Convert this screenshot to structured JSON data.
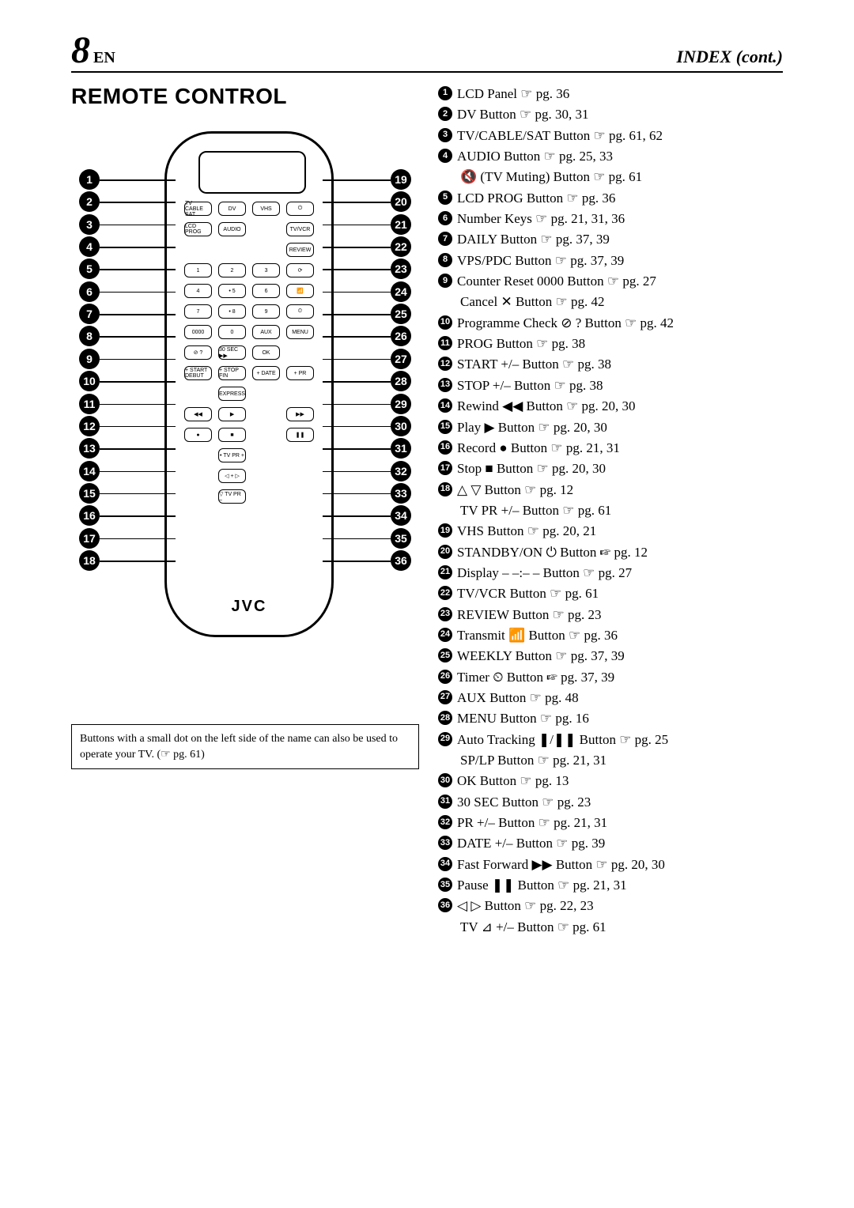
{
  "page_number_big": "8",
  "page_number_lang": "EN",
  "index_cont": "INDEX (cont.)",
  "section_title": "REMOTE CONTROL",
  "logo": "JVC",
  "note": "Buttons with a small dot on the left side of the name can also be used to operate your TV. (☞ pg. 61)",
  "left_callouts": [
    1,
    2,
    3,
    4,
    5,
    6,
    7,
    8,
    9,
    10,
    11,
    12,
    13,
    14,
    15,
    16,
    17,
    18
  ],
  "right_callouts": [
    19,
    20,
    21,
    22,
    23,
    24,
    25,
    26,
    27,
    28,
    29,
    30,
    31,
    32,
    33,
    34,
    35,
    36
  ],
  "remote_rows": [
    [
      "TV CABLE SAT",
      "DV",
      "VHS",
      "⏻"
    ],
    [
      "LCD PROG",
      "AUDIO",
      "",
      "TV/VCR"
    ],
    [
      "",
      "",
      "",
      "REVIEW"
    ],
    [
      "1",
      "2",
      "3",
      "⟳"
    ],
    [
      "4",
      "• 5",
      "6",
      "📶"
    ],
    [
      "7",
      "• 8",
      "9",
      "⏲"
    ],
    [
      "0000",
      "0",
      "AUX",
      "MENU"
    ],
    [
      "⊘ ?",
      "30 SEC ▶▶",
      "OK",
      ""
    ],
    [
      "+ START DEBUT",
      "+ STOP FIN",
      "+ DATE",
      "+ PR"
    ],
    [
      "",
      "EXPRESS",
      "",
      ""
    ],
    [
      "◀◀",
      "▶",
      "",
      "▶▶"
    ],
    [
      "●",
      "■",
      "",
      "❚❚"
    ],
    [
      "",
      "• TV PR +",
      "",
      ""
    ],
    [
      "",
      "◁  +  ▷",
      "",
      ""
    ],
    [
      "",
      "▽ TV PR –",
      "",
      ""
    ]
  ],
  "items": [
    {
      "n": 1,
      "t": "LCD Panel ☞ pg. 36"
    },
    {
      "n": 2,
      "t": "DV Button ☞ pg. 30, 31"
    },
    {
      "n": 3,
      "t": "TV/CABLE/SAT Button ☞ pg. 61, 62"
    },
    {
      "n": 4,
      "t": "AUDIO Button ☞ pg. 25, 33"
    },
    {
      "sub": true,
      "t": "🔇 (TV Muting) Button ☞ pg. 61"
    },
    {
      "n": 5,
      "t": "LCD PROG Button ☞ pg. 36"
    },
    {
      "n": 6,
      "t": "Number Keys ☞ pg. 21, 31, 36"
    },
    {
      "n": 7,
      "t": "DAILY Button ☞ pg. 37, 39"
    },
    {
      "n": 8,
      "t": "VPS/PDC Button ☞ pg. 37, 39"
    },
    {
      "n": 9,
      "t": "Counter Reset 0000 Button ☞ pg. 27"
    },
    {
      "sub": true,
      "t": "Cancel ✕ Button ☞ pg. 42"
    },
    {
      "n": 10,
      "t": "Programme Check ⊘ ? Button ☞ pg. 42"
    },
    {
      "n": 11,
      "t": "PROG Button ☞ pg. 38"
    },
    {
      "n": 12,
      "t": "START +/– Button ☞ pg. 38"
    },
    {
      "n": 13,
      "t": "STOP +/– Button ☞ pg. 38"
    },
    {
      "n": 14,
      "t": "Rewind ◀◀ Button ☞ pg. 20, 30"
    },
    {
      "n": 15,
      "t": "Play ▶ Button ☞ pg. 20, 30"
    },
    {
      "n": 16,
      "t": "Record ● Button ☞ pg. 21, 31"
    },
    {
      "n": 17,
      "t": "Stop ■ Button ☞ pg. 20, 30"
    },
    {
      "n": 18,
      "t": "△ ▽ Button ☞ pg. 12"
    },
    {
      "sub": true,
      "t": "TV PR +/– Button ☞ pg. 61"
    },
    {
      "n": 19,
      "t": "VHS Button ☞ pg. 20, 21"
    },
    {
      "n": 20,
      "t": "STANDBY/ON ⏻ Button ☞ pg. 12"
    },
    {
      "n": 21,
      "t": "Display – –:– – Button ☞ pg. 27"
    },
    {
      "n": 22,
      "t": "TV/VCR Button ☞ pg. 61"
    },
    {
      "n": 23,
      "t": "REVIEW Button ☞ pg. 23"
    },
    {
      "n": 24,
      "t": "Transmit 📶 Button ☞ pg. 36"
    },
    {
      "n": 25,
      "t": "WEEKLY Button ☞ pg. 37, 39"
    },
    {
      "n": 26,
      "t": "Timer ⏲ Button ☞ pg. 37, 39"
    },
    {
      "n": 27,
      "t": "AUX Button ☞ pg. 48"
    },
    {
      "n": 28,
      "t": "MENU Button ☞ pg. 16"
    },
    {
      "n": 29,
      "t": "Auto Tracking ❚/❚❚ Button ☞ pg. 25"
    },
    {
      "sub": true,
      "t": "SP/LP Button ☞ pg. 21, 31"
    },
    {
      "n": 30,
      "t": "OK Button ☞ pg. 13"
    },
    {
      "n": 31,
      "t": "30 SEC Button ☞ pg. 23"
    },
    {
      "n": 32,
      "t": "PR +/– Button ☞ pg. 21, 31"
    },
    {
      "n": 33,
      "t": "DATE +/– Button ☞ pg. 39"
    },
    {
      "n": 34,
      "t": "Fast Forward ▶▶ Button ☞ pg. 20, 30"
    },
    {
      "n": 35,
      "t": "Pause ❚❚ Button ☞ pg. 21, 31"
    },
    {
      "n": 36,
      "t": "◁ ▷ Button ☞ pg. 22, 23"
    },
    {
      "sub": true,
      "t": "TV ⊿ +/– Button ☞ pg. 61"
    }
  ]
}
